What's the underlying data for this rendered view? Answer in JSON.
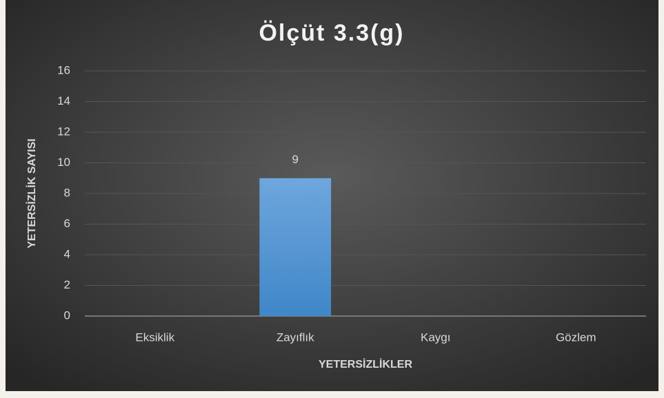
{
  "chart_data": {
    "type": "bar",
    "title": "Ölçüt 3.3(g)",
    "x_label": "YETERSİZLİKLER",
    "y_label": "YETERSİZLİK SAYISI",
    "categories": [
      "Eksiklik",
      "Zayıflık",
      "Kaygı",
      "Gözlem"
    ],
    "values": [
      null,
      9,
      null,
      null
    ],
    "color": "#5b9bd5",
    "ylim": [
      0,
      16
    ],
    "yticks": [
      0,
      2,
      4,
      6,
      8,
      10,
      12,
      14,
      16
    ],
    "grid": true
  }
}
